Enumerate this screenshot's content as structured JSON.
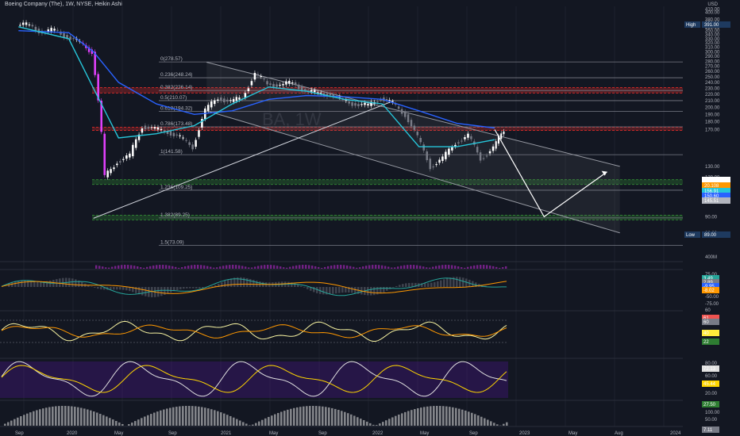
{
  "header": {
    "title": "Boeing Company (The), 1W, NYSE, Heikin Ashi",
    "currency": "USD",
    "watermark": "BA, 1W"
  },
  "colors": {
    "background": "#131722",
    "up": "#ffffff",
    "down": "#787b86",
    "crash": "#e040fb",
    "ma_fast": "#26c6da",
    "ma_slow": "#2962ff",
    "support_zone": "#2e7d32",
    "resistance_zone": "#c62828",
    "fib_line": "#787b86"
  },
  "chart_data": [
    {
      "type": "candlestick",
      "title": "Boeing Company (The), 1W, NYSE, Heikin Ashi",
      "x_tick_labels": [
        "Sep",
        "2020",
        "May",
        "Sep",
        "2021",
        "May",
        "Sep",
        "2022",
        "May",
        "Sep",
        "2023",
        "May",
        "Aug",
        "2024"
      ],
      "y_tick_labels": [
        "410.00",
        "400.00",
        "380.00",
        "370.00",
        "360.00",
        "350.00",
        "340.00",
        "330.00",
        "320.00",
        "310.00",
        "300.00",
        "290.00",
        "280.00",
        "270.00",
        "260.00",
        "250.00",
        "240.00",
        "230.00",
        "220.00",
        "210.00",
        "200.00",
        "190.00",
        "180.00",
        "170.00",
        "130.00",
        "120.00",
        "110.00",
        "100.00",
        "90.00",
        "80.00"
      ],
      "ylim": [
        70,
        415
      ],
      "y_axis": "log",
      "price_badges": [
        {
          "label": "High",
          "value": "391.00"
        },
        {
          "label": "Low",
          "value": "89.00"
        },
        {
          "label": "",
          "value": "169.62"
        },
        {
          "label": "",
          "value": "20.108"
        },
        {
          "label": "",
          "value": "156.91"
        },
        {
          "label": "",
          "value": "150.60"
        },
        {
          "label": "",
          "value": "145.51"
        }
      ],
      "fib_levels": [
        {
          "label": "0(278.57)",
          "price": 278.57
        },
        {
          "label": "0.236(248.24)",
          "price": 248.24
        },
        {
          "label": "0.382(226.14)",
          "price": 226.14
        },
        {
          "label": "0.5(210.07)",
          "price": 210.07
        },
        {
          "label": "0.618(194.32)",
          "price": 194.32
        },
        {
          "label": "0.786(173.48)",
          "price": 173.48
        },
        {
          "label": "1(141.58)",
          "price": 141.58
        },
        {
          "label": "1.236(109.25)",
          "price": 109.25
        },
        {
          "label": "1.382(89.25)",
          "price": 89.25
        },
        {
          "label": "1.5(73.09)",
          "price": 73.09
        }
      ],
      "series": [
        {
          "name": "BA",
          "points": [
            [
              "2019-09",
              365
            ],
            [
              "2019-10",
              345
            ],
            [
              "2019-11",
              352
            ],
            [
              "2019-12",
              335
            ],
            [
              "2020-01",
              320
            ],
            [
              "2020-02",
              300
            ],
            [
              "2020-03",
              120
            ],
            [
              "2020-04",
              135
            ],
            [
              "2020-05",
              140
            ],
            [
              "2020-06",
              175
            ],
            [
              "2020-07",
              170
            ],
            [
              "2020-08",
              168
            ],
            [
              "2020-09",
              160
            ],
            [
              "2020-10",
              150
            ],
            [
              "2020-11",
              195
            ],
            [
              "2020-12",
              215
            ],
            [
              "2021-01",
              208
            ],
            [
              "2021-02",
              215
            ],
            [
              "2021-03",
              255
            ],
            [
              "2021-04",
              238
            ],
            [
              "2021-05",
              235
            ],
            [
              "2021-06",
              240
            ],
            [
              "2021-07",
              225
            ],
            [
              "2021-08",
              222
            ],
            [
              "2021-09",
              220
            ],
            [
              "2021-10",
              210
            ],
            [
              "2021-11",
              205
            ],
            [
              "2021-12",
              202
            ],
            [
              "2022-01",
              215
            ],
            [
              "2022-02",
              205
            ],
            [
              "2022-03",
              190
            ],
            [
              "2022-04",
              160
            ],
            [
              "2022-05",
              130
            ],
            [
              "2022-06",
              137
            ],
            [
              "2022-07",
              155
            ],
            [
              "2022-08",
              162
            ],
            [
              "2022-09",
              138
            ],
            [
              "2022-10",
              148
            ],
            [
              "2022-11",
              170
            ]
          ]
        },
        {
          "name": "",
          "points": [
            [
              "2019-09",
              360
            ],
            [
              "2020-01",
              330
            ],
            [
              "2020-03",
              230
            ],
            [
              "2020-05",
              160
            ],
            [
              "2020-08",
              165
            ],
            [
              "2020-11",
              175
            ],
            [
              "2021-02",
              205
            ],
            [
              "2021-05",
              232
            ],
            [
              "2021-08",
              225
            ],
            [
              "2021-11",
              212
            ],
            [
              "2022-02",
              205
            ],
            [
              "2022-05",
              150
            ],
            [
              "2022-08",
              150
            ],
            [
              "2022-11",
              158
            ]
          ]
        },
        {
          "name": "",
          "points": [
            [
              "2019-09",
              350
            ],
            [
              "2020-01",
              345
            ],
            [
              "2020-03",
              300
            ],
            [
              "2020-05",
              240
            ],
            [
              "2020-08",
              205
            ],
            [
              "2020-11",
              190
            ],
            [
              "2021-02",
              195
            ],
            [
              "2021-05",
              212
            ],
            [
              "2021-08",
              218
            ],
            [
              "2021-11",
              216
            ],
            [
              "2022-02",
              212
            ],
            [
              "2022-05",
              195
            ],
            [
              "2022-08",
              178
            ],
            [
              "2022-11",
              172
            ]
          ]
        }
      ],
      "horizontal_zones": [
        {
          "kind": "resistance",
          "from": 222,
          "to": 231
        },
        {
          "kind": "resistance",
          "from": 169,
          "to": 173
        },
        {
          "kind": "support",
          "from": 114,
          "to": 118
        },
        {
          "kind": "support",
          "from": 88,
          "to": 91
        }
      ],
      "projection_path": [
        [
          "2022-11",
          170
        ],
        [
          "2023-03",
          90
        ],
        [
          "2023-08",
          125
        ]
      ]
    },
    {
      "type": "bar",
      "title": "",
      "y_tick_labels": [
        "400M"
      ],
      "note": "volume"
    },
    {
      "type": "line",
      "title": "",
      "y_tick_labels": [
        "75.00",
        "-50.00",
        "-75.00"
      ],
      "value_badges": [
        "3.49",
        "2.89",
        "-9.95",
        "-8.02"
      ]
    },
    {
      "type": "line",
      "title": "",
      "y_tick_labels": [
        "60",
        "20"
      ],
      "value_badges": [
        "61",
        "60",
        "40",
        "22"
      ]
    },
    {
      "type": "line",
      "title": "",
      "y_tick_labels": [
        "80.00",
        "60.00",
        "20.00"
      ],
      "value_badges": [
        "72.13",
        "45.44"
      ]
    },
    {
      "type": "bar",
      "title": "",
      "y_tick_labels": [
        "100.00",
        "50.00"
      ],
      "value_badges": [
        "27.50",
        "7.11"
      ]
    }
  ]
}
